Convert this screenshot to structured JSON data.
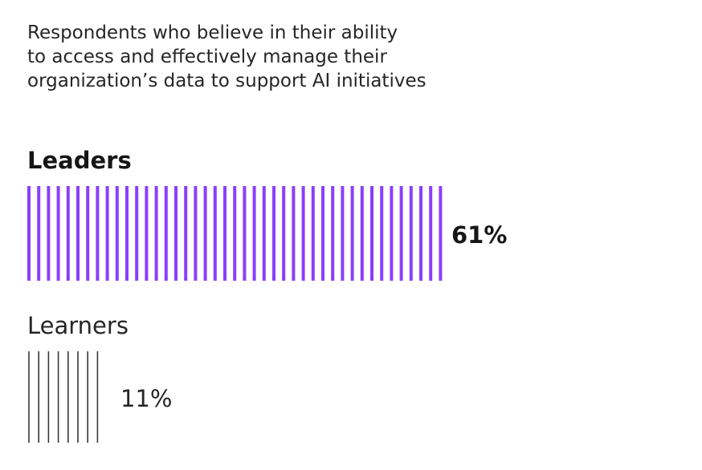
{
  "title": "Respondents who believe in their ability\nto access and effectively manage their\norganization’s data to support AI initiatives",
  "chart_data": {
    "type": "bar",
    "categories": [
      "Leaders",
      "Learners"
    ],
    "values": [
      61,
      11
    ],
    "value_labels": [
      "61%",
      "11%"
    ],
    "colors": [
      "#8a3ffc",
      "#393939"
    ],
    "unit": "%"
  }
}
